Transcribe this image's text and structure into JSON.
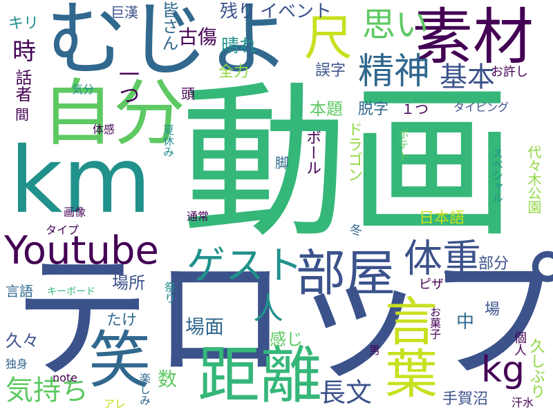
{
  "palette": {
    "purple": "#440154",
    "indigo": "#3b528b",
    "blue": "#31688e",
    "teal": "#21918c",
    "green": "#35b779",
    "lime": "#5ec962",
    "lightlime": "#90d743",
    "yellow": "#c8e020"
  },
  "words": [
    {
      "text": "動画",
      "color": "#35b779"
    },
    {
      "text": "テロップ",
      "color": "#3b528b"
    },
    {
      "text": "km",
      "color": "#21918c"
    },
    {
      "text": "むじよ",
      "color": "#31688e"
    },
    {
      "text": "自分",
      "color": "#5ec962"
    },
    {
      "text": "素材",
      "color": "#440154"
    },
    {
      "text": "Youtube",
      "color": "#440154"
    },
    {
      "text": "部屋",
      "color": "#3b528b"
    },
    {
      "text": "笑",
      "color": "#31688e"
    },
    {
      "text": "距離",
      "color": "#35b779"
    },
    {
      "text": "言葉",
      "color": "#c8e020"
    },
    {
      "text": "ゲスト",
      "color": "#21918c"
    },
    {
      "text": "体重",
      "color": "#3b528b"
    },
    {
      "text": "精神",
      "color": "#31688e"
    },
    {
      "text": "思い",
      "color": "#5ec962"
    },
    {
      "text": "尺",
      "color": "#c8e020"
    },
    {
      "text": "kg",
      "color": "#440154"
    },
    {
      "text": "基本",
      "color": "#3b528b"
    },
    {
      "text": "一つ",
      "color": "#440154"
    },
    {
      "text": "気持ち",
      "color": "#5ec962"
    },
    {
      "text": "長文",
      "color": "#3b528b"
    },
    {
      "text": "人",
      "color": "#21918c"
    },
    {
      "text": "場面",
      "color": "#31688e"
    },
    {
      "text": "古傷",
      "color": "#440154"
    },
    {
      "text": "晴れ",
      "color": "#21918c"
    },
    {
      "text": "残り",
      "color": "#3b528b"
    },
    {
      "text": "イベント",
      "color": "#3b528b"
    },
    {
      "text": "巨漢",
      "color": "#3b528b"
    },
    {
      "text": "キリ",
      "color": "#21918c"
    },
    {
      "text": "皆さん",
      "color": "#31688e"
    },
    {
      "text": "時",
      "color": "#440154"
    },
    {
      "text": "話者",
      "color": "#440154"
    },
    {
      "text": "間",
      "color": "#440154"
    },
    {
      "text": "全力",
      "color": "#90d743"
    },
    {
      "text": "誤字",
      "color": "#3b528b"
    },
    {
      "text": "お許し",
      "color": "#440154"
    },
    {
      "text": "頭",
      "color": "#440154"
    },
    {
      "text": "気分",
      "color": "#21918c"
    },
    {
      "text": "本題",
      "color": "#5ec962"
    },
    {
      "text": "脱字",
      "color": "#31688e"
    },
    {
      "text": "１つ",
      "color": "#440154"
    },
    {
      "text": "タイピング",
      "color": "#3b528b"
    },
    {
      "text": "体感",
      "color": "#440154"
    },
    {
      "text": "夏休み",
      "color": "#21918c"
    },
    {
      "text": "脚",
      "color": "#31688e"
    },
    {
      "text": "ボール",
      "color": "#440154"
    },
    {
      "text": "ドラゴン",
      "color": "#90d743"
    },
    {
      "text": "ポテト",
      "color": "#5ec962"
    },
    {
      "text": "スペシャル",
      "color": "#21918c"
    },
    {
      "text": "代々木公園",
      "color": "#90d743"
    },
    {
      "text": "画像",
      "color": "#440154"
    },
    {
      "text": "通常",
      "color": "#440154"
    },
    {
      "text": "タイプ",
      "color": "#440154"
    },
    {
      "text": "冬",
      "color": "#31688e"
    },
    {
      "text": "日本語",
      "color": "#c8e020"
    },
    {
      "text": "部分",
      "color": "#3b528b"
    },
    {
      "text": "場所",
      "color": "#3b528b"
    },
    {
      "text": "言語",
      "color": "#31688e"
    },
    {
      "text": "キーボード",
      "color": "#35b779"
    },
    {
      "text": "祭り",
      "color": "#21918c"
    },
    {
      "text": "ピザ",
      "color": "#440154"
    },
    {
      "text": "中",
      "color": "#31688e"
    },
    {
      "text": "場",
      "color": "#3b528b"
    },
    {
      "text": "たけ",
      "color": "#31688e"
    },
    {
      "text": "感じ",
      "color": "#5ec962"
    },
    {
      "text": "お菓子",
      "color": "#440154"
    },
    {
      "text": "個人",
      "color": "#440154"
    },
    {
      "text": "久々",
      "color": "#3b528b"
    },
    {
      "text": "独身",
      "color": "#31688e"
    },
    {
      "text": "男",
      "color": "#440154"
    },
    {
      "text": "数",
      "color": "#5ec962"
    },
    {
      "text": "久しぶり",
      "color": "#90d743"
    },
    {
      "text": "note",
      "color": "#440154"
    },
    {
      "text": "アレ",
      "color": "#c8e020"
    },
    {
      "text": "楽しみ",
      "color": "#31688e"
    },
    {
      "text": "手賀沼",
      "color": "#3b528b"
    },
    {
      "text": "汗水",
      "color": "#440154"
    }
  ]
}
